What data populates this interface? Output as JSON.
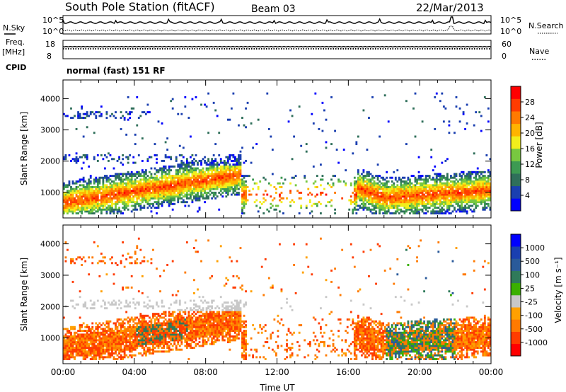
{
  "header": {
    "title": "South Pole Station (fitACF)",
    "beam": "Beam 03",
    "date": "22/Mar/2013"
  },
  "params": {
    "nsky_label": "N.Sky",
    "nsky_ticks": [
      "10^5",
      "10^0"
    ],
    "nsearch_label": "N.Search",
    "freq_label": "Freq.",
    "freq_unit": "[MHz]",
    "freq_ticks": [
      "18",
      "8"
    ],
    "nave_label": "Nave",
    "nave_ticks": [
      "60",
      "0"
    ],
    "cpid_label": "CPID",
    "cpid_text": "normal (fast) 151 RF"
  },
  "colors": {
    "power_scale": [
      "#0000ff",
      "#1a3fb0",
      "#2f6f5a",
      "#3d9a52",
      "#78c840",
      "#f2ee1c",
      "#ffb400",
      "#ff7a00",
      "#ff3c00",
      "#ff0000"
    ],
    "velocity_scale": [
      "#ff0000",
      "#ff3c00",
      "#ff7a00",
      "#ffa000",
      "#c8c8c8",
      "#3ab000",
      "#2f7a5a",
      "#2a5a9a",
      "#1a3fb0",
      "#0000ff"
    ]
  },
  "chart_data": [
    {
      "type": "heatmap",
      "name": "power",
      "xlabel": "",
      "ylabel": "Slant Range [km]",
      "colorbar_label": "Power [dB]",
      "colorbar_ticks": [
        "4",
        "8",
        "12",
        "16",
        "20",
        "24",
        "28"
      ],
      "y_ticks": [
        "1000",
        "2000",
        "3000",
        "4000"
      ],
      "ylim": [
        180,
        4600
      ],
      "xlim": [
        0,
        24
      ],
      "x_ticks": [
        "00:00",
        "04:00",
        "08:00",
        "12:00",
        "16:00",
        "20:00",
        "00:00"
      ]
    },
    {
      "type": "heatmap",
      "name": "velocity",
      "xlabel": "Time UT",
      "ylabel": "Slant Range [km]",
      "colorbar_label": "Velocity [m s⁻¹]",
      "colorbar_ticks": [
        "1000",
        "500",
        "100",
        "25",
        "-25",
        "-100",
        "-500",
        "-1000"
      ],
      "y_ticks": [
        "1000",
        "2000",
        "3000",
        "4000"
      ],
      "ylim": [
        180,
        4600
      ],
      "xlim": [
        0,
        24
      ],
      "x_ticks": [
        "00:00",
        "04:00",
        "08:00",
        "12:00",
        "16:00",
        "20:00",
        "00:00"
      ]
    }
  ]
}
